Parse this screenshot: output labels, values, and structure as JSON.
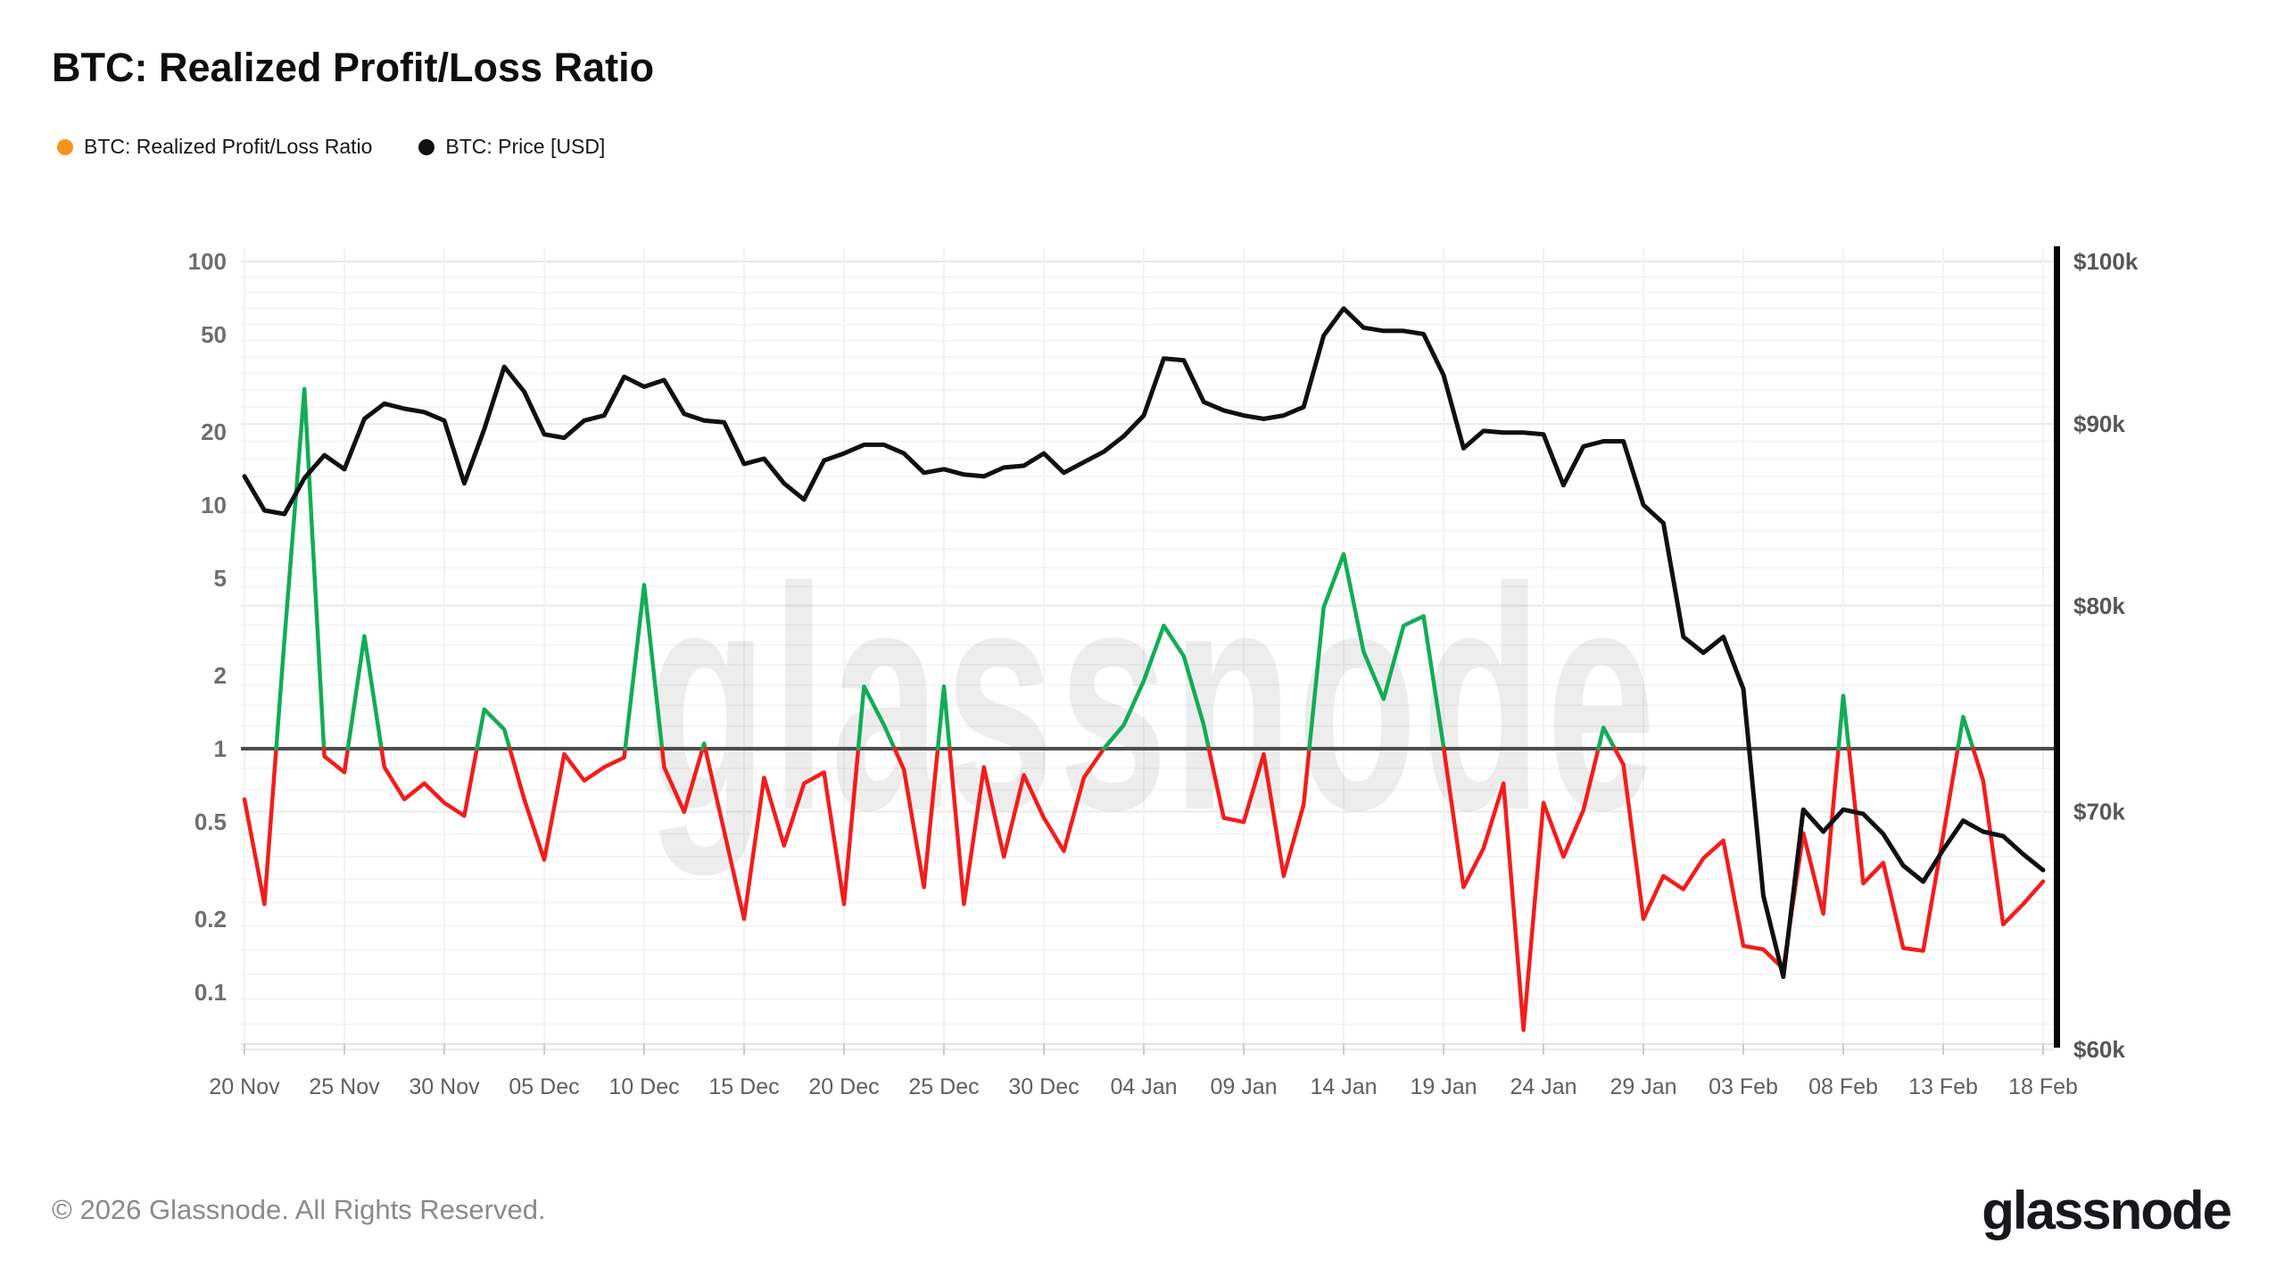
{
  "title": "BTC: Realized Profit/Loss Ratio",
  "legend": [
    {
      "label": "BTC: Realized Profit/Loss Ratio",
      "color": "#F7941D"
    },
    {
      "label": "BTC: Price [USD]",
      "color": "#111111"
    }
  ],
  "watermark_text": "glassnode",
  "footer": {
    "copyright": "© 2026 Glassnode. All Rights Reserved.",
    "logo_text": "glassnode"
  },
  "colors": {
    "ratio_above": "#12AC56",
    "ratio_below": "#F41C1C",
    "price_line": "#101010",
    "reference_line": "#4D4D4D",
    "grid_minor": "#F3F3F3",
    "grid_major": "#E9E9E9",
    "baseline": "#E3E3E3",
    "tick_mark": "#CCCCCC",
    "axis_text_left": "#6E6E6E",
    "axis_text_right": "#565656",
    "x_axis_text": "#5F5F5F",
    "right_axis_bar": "#050505",
    "watermark": "#000000"
  },
  "chart_data": {
    "type": "line",
    "title": "BTC: Realized Profit/Loss Ratio",
    "x_tick_labels": [
      "20 Nov",
      "25 Nov",
      "30 Nov",
      "05 Dec",
      "10 Dec",
      "15 Dec",
      "20 Dec",
      "25 Dec",
      "30 Dec",
      "04 Jan",
      "09 Jan",
      "14 Jan",
      "19 Jan",
      "24 Jan",
      "29 Jan",
      "03 Feb",
      "08 Feb",
      "13 Feb",
      "18 Feb"
    ],
    "x_tick_indices": [
      0,
      5,
      10,
      15,
      20,
      25,
      30,
      35,
      40,
      45,
      50,
      55,
      60,
      65,
      70,
      75,
      80,
      85,
      90
    ],
    "left_axis": {
      "scale": "log",
      "tick_labels": [
        "100",
        "50",
        "20",
        "10",
        "5",
        "2",
        "1",
        "0.5",
        "0.2",
        "0.1"
      ],
      "tick_values": [
        100,
        50,
        20,
        10,
        5,
        2,
        1,
        0.5,
        0.2,
        0.1
      ]
    },
    "right_axis": {
      "scale": "log",
      "tick_labels": [
        "$100k",
        "$90k",
        "$80k",
        "$70k",
        "$60k"
      ],
      "tick_values": [
        100000,
        90000,
        80000,
        70000,
        60000
      ],
      "minor_step": 1000
    },
    "reference_value": 1,
    "grid": true,
    "legend_position": "top-left",
    "dates": [
      "20 Nov",
      "21 Nov",
      "22 Nov",
      "23 Nov",
      "24 Nov",
      "25 Nov",
      "26 Nov",
      "27 Nov",
      "28 Nov",
      "29 Nov",
      "30 Nov",
      "01 Dec",
      "02 Dec",
      "03 Dec",
      "04 Dec",
      "05 Dec",
      "06 Dec",
      "07 Dec",
      "08 Dec",
      "09 Dec",
      "10 Dec",
      "11 Dec",
      "12 Dec",
      "13 Dec",
      "14 Dec",
      "15 Dec",
      "16 Dec",
      "17 Dec",
      "18 Dec",
      "19 Dec",
      "20 Dec",
      "21 Dec",
      "22 Dec",
      "23 Dec",
      "24 Dec",
      "25 Dec",
      "26 Dec",
      "27 Dec",
      "28 Dec",
      "29 Dec",
      "30 Dec",
      "31 Dec",
      "01 Jan",
      "02 Jan",
      "03 Jan",
      "04 Jan",
      "05 Jan",
      "06 Jan",
      "07 Jan",
      "08 Jan",
      "09 Jan",
      "10 Jan",
      "11 Jan",
      "12 Jan",
      "13 Jan",
      "14 Jan",
      "15 Jan",
      "16 Jan",
      "17 Jan",
      "18 Jan",
      "19 Jan",
      "20 Jan",
      "21 Jan",
      "22 Jan",
      "23 Jan",
      "24 Jan",
      "25 Jan",
      "26 Jan",
      "27 Jan",
      "28 Jan",
      "29 Jan",
      "30 Jan",
      "31 Jan",
      "01 Feb",
      "02 Feb",
      "03 Feb",
      "04 Feb",
      "05 Feb",
      "06 Feb",
      "07 Feb",
      "08 Feb",
      "09 Feb",
      "10 Feb",
      "11 Feb",
      "12 Feb",
      "13 Feb",
      "14 Feb",
      "15 Feb",
      "16 Feb",
      "17 Feb",
      "18 Feb"
    ],
    "series": [
      {
        "name": "BTC: Realized Profit/Loss Ratio",
        "axis": "left",
        "style": "threshold-two-color",
        "threshold": 1,
        "values": [
          0.62,
          0.23,
          2.8,
          30,
          0.93,
          0.8,
          2.9,
          0.84,
          0.62,
          0.72,
          0.6,
          0.53,
          1.45,
          1.2,
          0.62,
          0.35,
          0.95,
          0.74,
          0.84,
          0.92,
          4.7,
          0.84,
          0.55,
          1.05,
          0.46,
          0.2,
          0.76,
          0.4,
          0.72,
          0.8,
          0.23,
          1.8,
          1.25,
          0.82,
          0.27,
          1.8,
          0.23,
          0.84,
          0.36,
          0.78,
          0.52,
          0.38,
          0.76,
          1.0,
          1.25,
          1.9,
          3.2,
          2.4,
          1.25,
          0.52,
          0.5,
          0.95,
          0.3,
          0.59,
          3.8,
          6.3,
          2.5,
          1.6,
          3.2,
          3.5,
          1.02,
          0.27,
          0.39,
          0.72,
          0.07,
          0.6,
          0.36,
          0.56,
          1.22,
          0.86,
          0.2,
          0.3,
          0.265,
          0.355,
          0.42,
          0.155,
          0.15,
          0.125,
          0.45,
          0.21,
          1.65,
          0.28,
          0.34,
          0.152,
          0.148,
          0.44,
          1.35,
          0.74,
          0.19,
          0.23,
          0.285
        ]
      },
      {
        "name": "BTC: Price [USD]",
        "axis": "right",
        "values": [
          87000,
          85100,
          84900,
          86900,
          88200,
          87400,
          90300,
          91200,
          90900,
          90700,
          90200,
          86600,
          89700,
          93400,
          91900,
          89400,
          89200,
          90200,
          90500,
          92800,
          92200,
          92600,
          90600,
          90200,
          90100,
          87700,
          88000,
          86600,
          85700,
          87900,
          88300,
          88800,
          88800,
          88300,
          87200,
          87400,
          87100,
          87000,
          87500,
          87600,
          88300,
          87200,
          87800,
          88400,
          89300,
          90500,
          93900,
          93800,
          91300,
          90800,
          90500,
          90300,
          90500,
          91000,
          95300,
          97000,
          95800,
          95600,
          95600,
          95400,
          92900,
          88600,
          89600,
          89500,
          89500,
          89400,
          86500,
          88700,
          89000,
          89000,
          85400,
          84400,
          78400,
          77600,
          78400,
          75800,
          66300,
          62900,
          70100,
          69100,
          70100,
          69900,
          69000,
          67600,
          66900,
          68300,
          69600,
          69100,
          68900,
          68100,
          67400
        ]
      }
    ]
  }
}
